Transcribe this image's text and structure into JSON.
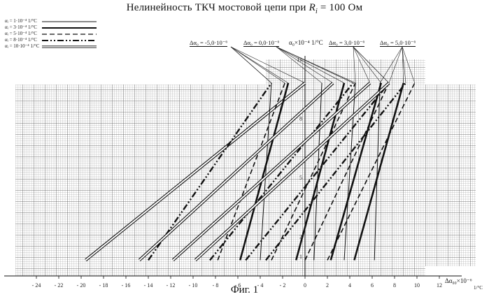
{
  "title": {
    "text": "Нелинейность ТКЧ мостовой цепи при",
    "var": "R",
    "sub": "i",
    "rest": "= 100 Ом"
  },
  "caption": "Фиг. 1",
  "legend": [
    {
      "label": "αᵢ = 1·10⁻⁴ 1/°C",
      "style": "solid-thin"
    },
    {
      "label": "αᵢ = 3·10⁻⁴ 1/°C",
      "style": "solid-thick"
    },
    {
      "label": "αᵢ = 5·10⁻⁴ 1/°C",
      "style": "dashed"
    },
    {
      "label": "αᵢ = 8·10⁻⁴ 1/°C",
      "style": "dash-dot-dot"
    },
    {
      "label": "αᵢ = 10·10⁻⁴ 1/°C",
      "style": "double"
    }
  ],
  "annotations": [
    {
      "text": "Δα₀ = -5,0·10⁻⁶",
      "group": 0
    },
    {
      "text": "Δα₀ = 0,0·10⁻⁶",
      "group": 1
    },
    {
      "text": "Δα₀ = 3,0·10⁻⁶",
      "group": 2
    },
    {
      "text": "Δα₀ = 5,0·10⁻⁶",
      "group": 3
    }
  ],
  "y_axis_label": "α₀×10⁻⁴ 1/°C",
  "x_axis_label": "Δα₀₀×10⁻⁶",
  "x_axis_unit": "1/°C",
  "chart_data": {
    "type": "line",
    "x_ticks": [
      -24,
      -22,
      -20,
      -18,
      -16,
      -14,
      -12,
      -10,
      -8,
      -6,
      -4,
      -2,
      0,
      2,
      4,
      6,
      8,
      10,
      12
    ],
    "xlim": [
      -25,
      12.5
    ],
    "ylim": [
      0,
      11
    ],
    "grid": true,
    "y_tick_labels": [
      "11",
      "8",
      "5",
      "2",
      "1"
    ],
    "series": [
      {
        "group": "Δα₀ = -5,0·10⁻⁶",
        "style": "double",
        "x": [
          -19.6,
          0.0
        ],
        "y": [
          0.8,
          9.8
        ]
      },
      {
        "group": "Δα₀ = -5,0·10⁻⁶",
        "style": "dash-dot-dot",
        "x": [
          -14.0,
          -3.0
        ],
        "y": [
          0.8,
          9.8
        ]
      },
      {
        "group": "Δα₀ = -5,0·10⁻⁶",
        "style": "dashed",
        "x": [
          -7.8,
          -1.8
        ],
        "y": [
          0.8,
          9.8
        ]
      },
      {
        "group": "Δα₀ = -5,0·10⁻⁶",
        "style": "solid-thick",
        "x": [
          -5.8,
          -1.5
        ],
        "y": [
          0.8,
          9.8
        ]
      },
      {
        "group": "Δα₀ = -5,0·10⁻⁶",
        "style": "solid-thin",
        "x": [
          -4.0,
          -3.0
        ],
        "y": [
          0.8,
          9.8
        ]
      },
      {
        "group": "Δα₀ = 0,0·10⁻⁶",
        "style": "double",
        "x": [
          -14.8,
          2.5
        ],
        "y": [
          0.8,
          9.8
        ]
      },
      {
        "group": "Δα₀ = 0,0·10⁻⁶",
        "style": "dash-dot-dot",
        "x": [
          -8.5,
          4.3
        ],
        "y": [
          0.8,
          9.8
        ]
      },
      {
        "group": "Δα₀ = 0,0·10⁻⁶",
        "style": "dashed",
        "x": [
          -3.0,
          4.5
        ],
        "y": [
          0.8,
          9.8
        ]
      },
      {
        "group": "Δα₀ = 0,0·10⁻⁶",
        "style": "solid-thick",
        "x": [
          -0.8,
          3.5
        ],
        "y": [
          0.8,
          9.8
        ]
      },
      {
        "group": "Δα₀ = 0,0·10⁻⁶",
        "style": "solid-thin",
        "x": [
          0.8,
          1.5
        ],
        "y": [
          0.8,
          9.8
        ]
      },
      {
        "group": "Δα₀ = 3,0·10⁻⁶",
        "style": "double",
        "x": [
          -11.8,
          5.8
        ],
        "y": [
          0.8,
          9.8
        ]
      },
      {
        "group": "Δα₀ = 3,0·10⁻⁶",
        "style": "dash-dot-dot",
        "x": [
          -5.3,
          7.5
        ],
        "y": [
          0.8,
          9.8
        ]
      },
      {
        "group": "Δα₀ = 3,0·10⁻⁶",
        "style": "dashed",
        "x": [
          0.0,
          7.5
        ],
        "y": [
          0.8,
          9.8
        ]
      },
      {
        "group": "Δα₀ = 3,0·10⁻⁶",
        "style": "solid-thick",
        "x": [
          2.3,
          6.8
        ],
        "y": [
          0.8,
          9.8
        ]
      },
      {
        "group": "Δα₀ = 3,0·10⁻⁶",
        "style": "solid-thin",
        "x": [
          3.5,
          4.5
        ],
        "y": [
          0.8,
          9.8
        ]
      },
      {
        "group": "Δα₀ = 5,0·10⁻⁶",
        "style": "double",
        "x": [
          -9.8,
          7.5
        ],
        "y": [
          0.8,
          9.8
        ]
      },
      {
        "group": "Δα₀ = 5,0·10⁻⁶",
        "style": "dash-dot-dot",
        "x": [
          -3.5,
          9.0
        ],
        "y": [
          0.8,
          9.8
        ]
      },
      {
        "group": "Δα₀ = 5,0·10⁻⁶",
        "style": "dashed",
        "x": [
          2.0,
          9.8
        ],
        "y": [
          0.8,
          9.8
        ]
      },
      {
        "group": "Δα₀ = 5,0·10⁻⁶",
        "style": "solid-thick",
        "x": [
          4.4,
          8.8
        ],
        "y": [
          0.8,
          9.8
        ]
      },
      {
        "group": "Δα₀ = 5,0·10⁻⁶",
        "style": "solid-thin",
        "x": [
          6.2,
          6.7
        ],
        "y": [
          0.8,
          9.8
        ]
      }
    ]
  }
}
